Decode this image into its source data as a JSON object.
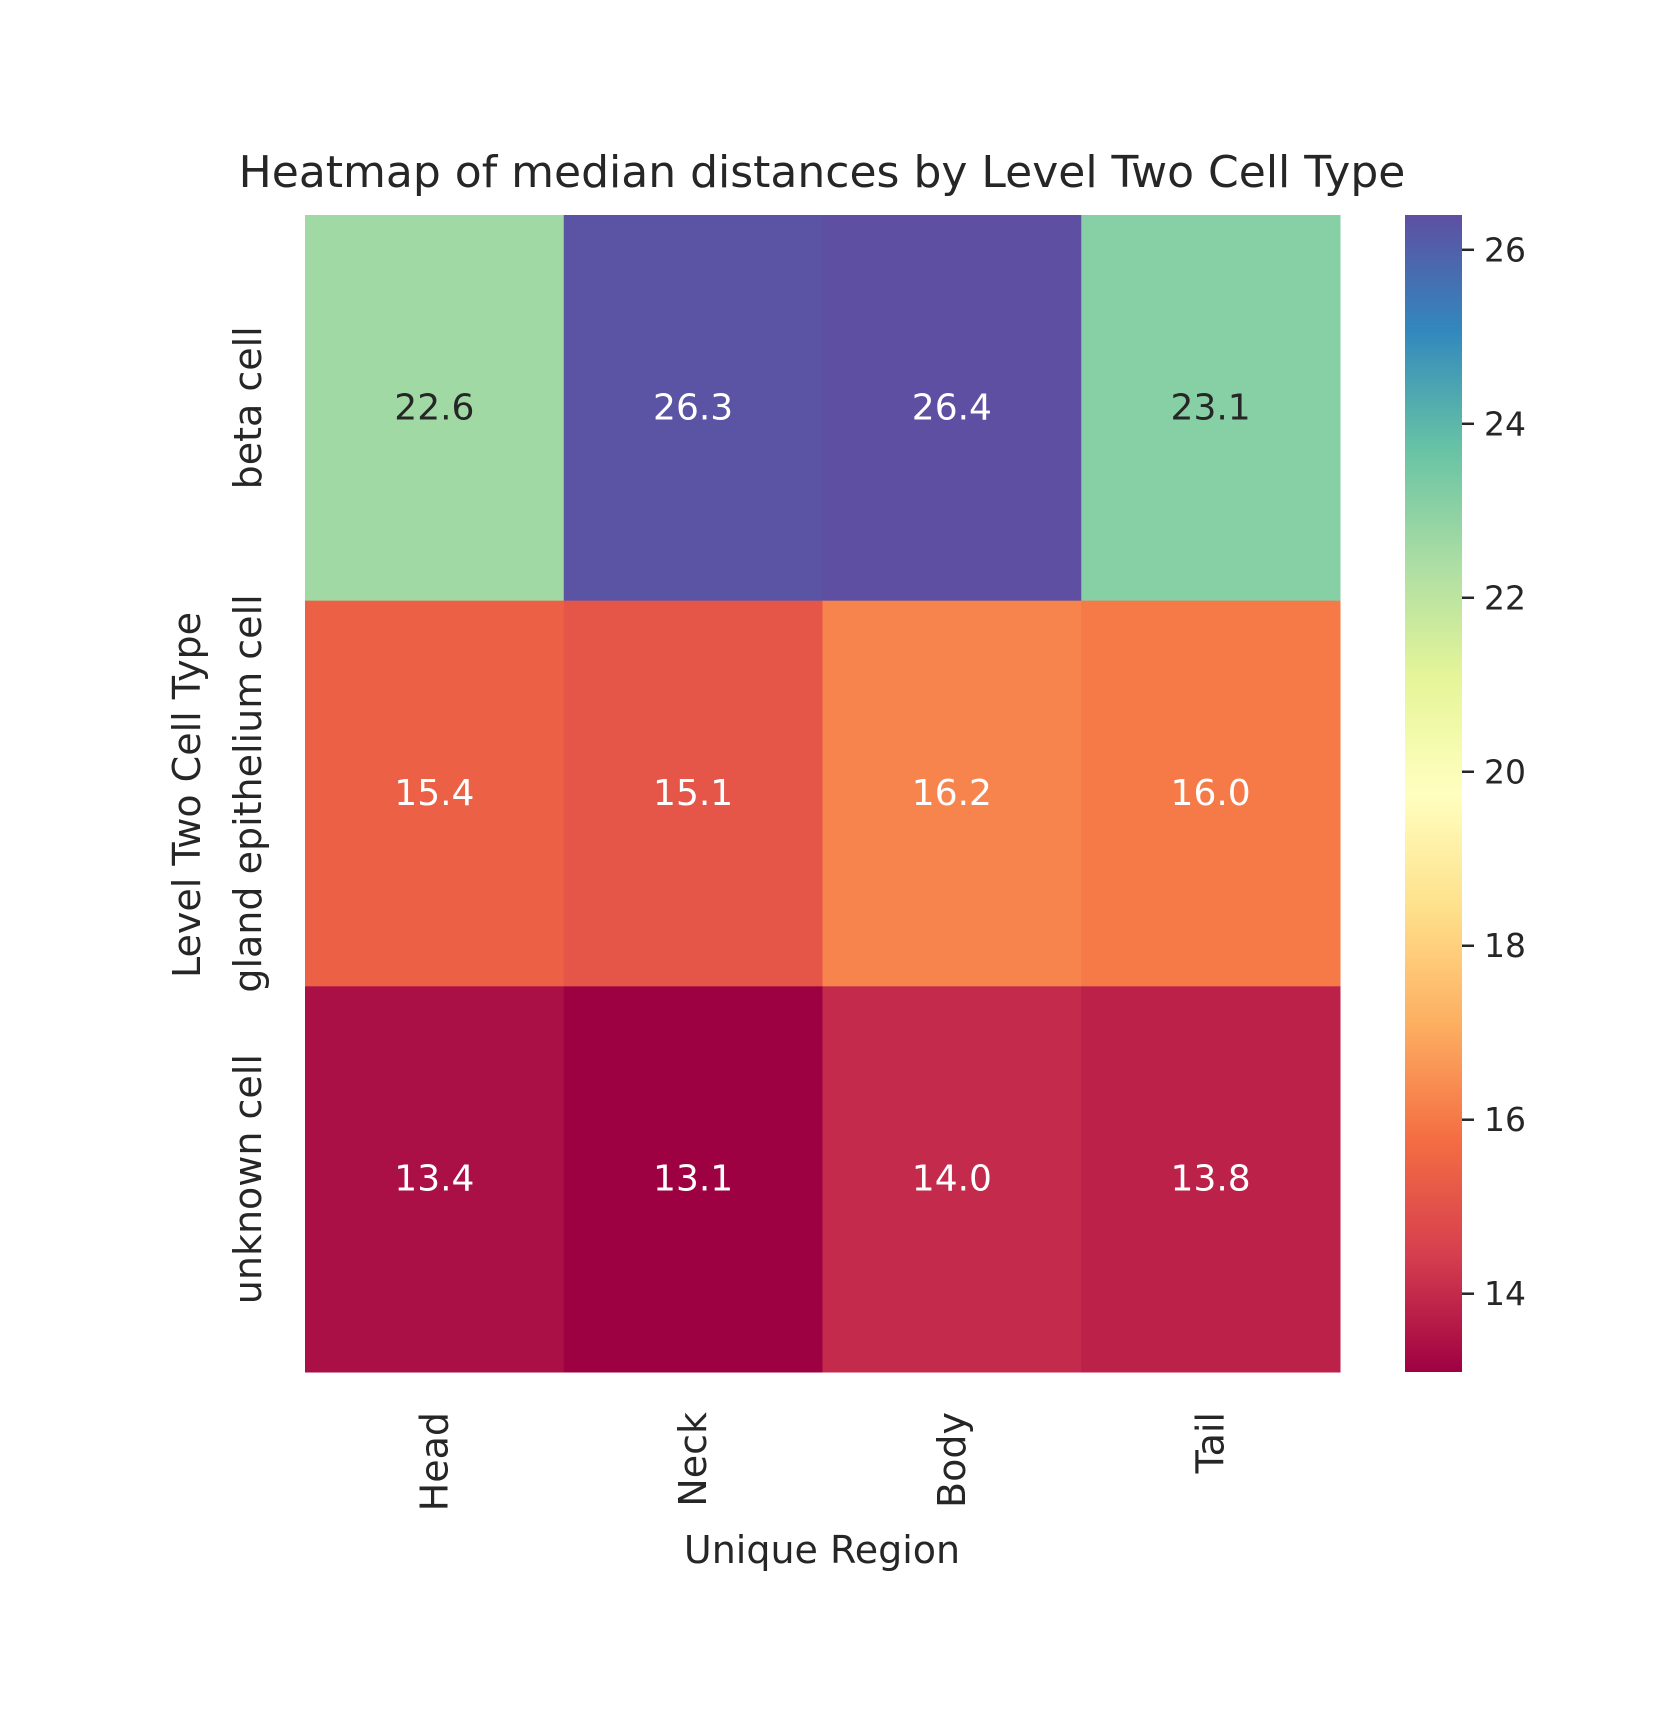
{
  "chart_data": {
    "type": "heatmap",
    "title": "Heatmap of median distances by Level Two Cell Type",
    "xlabel": "Unique Region",
    "ylabel": "Level Two Cell Type",
    "x_categories": [
      "Head",
      "Neck",
      "Body",
      "Tail"
    ],
    "y_categories": [
      "beta cell",
      "gland epithelium cell",
      "unknown cell"
    ],
    "values": [
      [
        22.6,
        26.3,
        26.4,
        23.1
      ],
      [
        15.4,
        15.1,
        16.2,
        16.0
      ],
      [
        13.4,
        13.1,
        14.0,
        13.8
      ]
    ],
    "value_format": "0.0",
    "colormap": "Spectral",
    "colorbar": {
      "vmin": 13.1,
      "vmax": 26.4,
      "ticks": [
        14,
        16,
        18,
        20,
        22,
        24,
        26
      ],
      "tick_labels": [
        "14",
        "16",
        "18",
        "20",
        "22",
        "24",
        "26"
      ],
      "position": "right"
    },
    "colors": {
      "annotation_dark": "#262626",
      "annotation_light": "#ffffff",
      "text": "#262626"
    }
  }
}
